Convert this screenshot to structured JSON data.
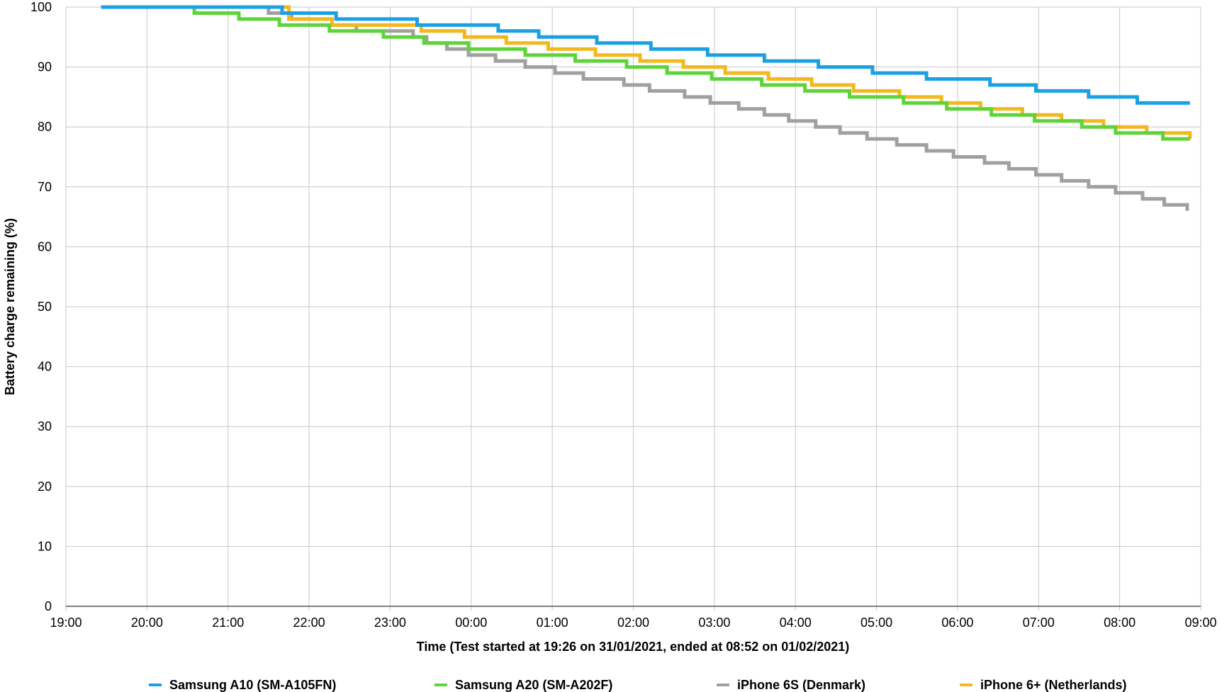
{
  "chart_data": {
    "type": "line",
    "title": "",
    "xlabel": "Time (Test started at 19:26 on 31/01/2021, ended at 08:52 on 01/02/2021)",
    "ylabel": "Battery charge remaining (%)",
    "x_ticks": [
      "19:00",
      "20:00",
      "21:00",
      "22:00",
      "23:00",
      "00:00",
      "01:00",
      "02:00",
      "03:00",
      "04:00",
      "05:00",
      "06:00",
      "07:00",
      "08:00",
      "09:00"
    ],
    "y_ticks": [
      0,
      10,
      20,
      30,
      40,
      50,
      60,
      70,
      80,
      90,
      100
    ],
    "ylim": [
      0,
      100
    ],
    "xlim_hours_from_19_00": [
      0,
      14
    ],
    "grid": true,
    "legend_position": "bottom",
    "step_lines": true,
    "series": [
      {
        "name": "Samsung A10 (SM-A105FN)",
        "color": "#1ba1e2",
        "points": [
          [
            "19:26",
            100
          ],
          [
            "21:40",
            100
          ],
          [
            "21:40",
            99
          ],
          [
            "22:20",
            99
          ],
          [
            "22:20",
            98
          ],
          [
            "23:20",
            98
          ],
          [
            "23:20",
            97
          ],
          [
            "00:20",
            97
          ],
          [
            "00:20",
            96
          ],
          [
            "00:50",
            96
          ],
          [
            "00:50",
            95
          ],
          [
            "01:33",
            95
          ],
          [
            "01:33",
            94
          ],
          [
            "02:13",
            94
          ],
          [
            "02:13",
            93
          ],
          [
            "02:55",
            93
          ],
          [
            "02:55",
            92
          ],
          [
            "03:37",
            92
          ],
          [
            "03:37",
            91
          ],
          [
            "04:17",
            91
          ],
          [
            "04:17",
            90
          ],
          [
            "04:57",
            90
          ],
          [
            "04:57",
            89
          ],
          [
            "05:37",
            89
          ],
          [
            "05:37",
            88
          ],
          [
            "06:24",
            88
          ],
          [
            "06:24",
            87
          ],
          [
            "06:58",
            87
          ],
          [
            "06:58",
            86
          ],
          [
            "07:37",
            86
          ],
          [
            "07:37",
            85
          ],
          [
            "08:13",
            85
          ],
          [
            "08:13",
            84
          ],
          [
            "08:52",
            84
          ]
        ]
      },
      {
        "name": "Samsung A20 (SM-A202F)",
        "color": "#5fd43a",
        "points": [
          [
            "19:26",
            100
          ],
          [
            "20:35",
            100
          ],
          [
            "20:35",
            99
          ],
          [
            "21:08",
            99
          ],
          [
            "21:08",
            98
          ],
          [
            "21:38",
            98
          ],
          [
            "21:38",
            97
          ],
          [
            "22:15",
            97
          ],
          [
            "22:15",
            96
          ],
          [
            "22:55",
            96
          ],
          [
            "22:55",
            95
          ],
          [
            "23:25",
            95
          ],
          [
            "23:25",
            94
          ],
          [
            "23:58",
            94
          ],
          [
            "23:58",
            93
          ],
          [
            "00:40",
            93
          ],
          [
            "00:40",
            92
          ],
          [
            "01:17",
            92
          ],
          [
            "01:17",
            91
          ],
          [
            "01:55",
            91
          ],
          [
            "01:55",
            90
          ],
          [
            "02:25",
            90
          ],
          [
            "02:25",
            89
          ],
          [
            "02:58",
            89
          ],
          [
            "02:58",
            88
          ],
          [
            "03:35",
            88
          ],
          [
            "03:35",
            87
          ],
          [
            "04:07",
            87
          ],
          [
            "04:07",
            86
          ],
          [
            "04:40",
            86
          ],
          [
            "04:40",
            85
          ],
          [
            "05:20",
            85
          ],
          [
            "05:20",
            84
          ],
          [
            "05:52",
            84
          ],
          [
            "05:52",
            83
          ],
          [
            "06:25",
            83
          ],
          [
            "06:25",
            82
          ],
          [
            "06:57",
            82
          ],
          [
            "06:57",
            81
          ],
          [
            "07:32",
            81
          ],
          [
            "07:32",
            80
          ],
          [
            "07:57",
            80
          ],
          [
            "07:57",
            79
          ],
          [
            "08:32",
            79
          ],
          [
            "08:32",
            78
          ],
          [
            "08:52",
            78
          ]
        ]
      },
      {
        "name": "iPhone 6S (Denmark)",
        "color": "#a0a0a0",
        "points": [
          [
            "19:26",
            100
          ],
          [
            "21:30",
            100
          ],
          [
            "21:30",
            99
          ],
          [
            "21:47",
            99
          ],
          [
            "21:47",
            98
          ],
          [
            "22:17",
            98
          ],
          [
            "22:17",
            97
          ],
          [
            "22:35",
            97
          ],
          [
            "22:35",
            96
          ],
          [
            "23:17",
            96
          ],
          [
            "23:17",
            95
          ],
          [
            "23:27",
            95
          ],
          [
            "23:27",
            94
          ],
          [
            "23:42",
            94
          ],
          [
            "23:42",
            93
          ],
          [
            "23:58",
            93
          ],
          [
            "23:58",
            92
          ],
          [
            "00:18",
            92
          ],
          [
            "00:18",
            91
          ],
          [
            "00:40",
            91
          ],
          [
            "00:40",
            90
          ],
          [
            "01:02",
            90
          ],
          [
            "01:02",
            89
          ],
          [
            "01:23",
            89
          ],
          [
            "01:23",
            88
          ],
          [
            "01:53",
            88
          ],
          [
            "01:53",
            87
          ],
          [
            "02:12",
            87
          ],
          [
            "02:12",
            86
          ],
          [
            "02:38",
            86
          ],
          [
            "02:38",
            85
          ],
          [
            "02:57",
            85
          ],
          [
            "02:57",
            84
          ],
          [
            "03:18",
            84
          ],
          [
            "03:18",
            83
          ],
          [
            "03:37",
            83
          ],
          [
            "03:37",
            82
          ],
          [
            "03:55",
            82
          ],
          [
            "03:55",
            81
          ],
          [
            "04:15",
            81
          ],
          [
            "04:15",
            80
          ],
          [
            "04:33",
            80
          ],
          [
            "04:33",
            79
          ],
          [
            "04:53",
            79
          ],
          [
            "04:53",
            78
          ],
          [
            "05:15",
            78
          ],
          [
            "05:15",
            77
          ],
          [
            "05:37",
            77
          ],
          [
            "05:37",
            76
          ],
          [
            "05:57",
            76
          ],
          [
            "05:57",
            75
          ],
          [
            "06:20",
            75
          ],
          [
            "06:20",
            74
          ],
          [
            "06:38",
            74
          ],
          [
            "06:38",
            73
          ],
          [
            "06:58",
            73
          ],
          [
            "06:58",
            72
          ],
          [
            "07:17",
            72
          ],
          [
            "07:17",
            71
          ],
          [
            "07:37",
            71
          ],
          [
            "07:37",
            70
          ],
          [
            "07:57",
            70
          ],
          [
            "07:57",
            69
          ],
          [
            "08:17",
            69
          ],
          [
            "08:17",
            68
          ],
          [
            "08:33",
            68
          ],
          [
            "08:33",
            67
          ],
          [
            "08:50",
            67
          ],
          [
            "08:50",
            66
          ]
        ]
      },
      {
        "name": "iPhone 6+ (Netherlands)",
        "color": "#f2b81c",
        "points": [
          [
            "19:26",
            100
          ],
          [
            "21:45",
            100
          ],
          [
            "21:45",
            98
          ],
          [
            "22:17",
            98
          ],
          [
            "22:17",
            97
          ],
          [
            "22:50",
            97
          ],
          [
            "22:50",
            97
          ],
          [
            "23:23",
            97
          ],
          [
            "23:23",
            96
          ],
          [
            "23:55",
            96
          ],
          [
            "23:55",
            95
          ],
          [
            "00:26",
            95
          ],
          [
            "00:26",
            94
          ],
          [
            "00:57",
            94
          ],
          [
            "00:57",
            93
          ],
          [
            "01:32",
            93
          ],
          [
            "01:32",
            92
          ],
          [
            "02:05",
            92
          ],
          [
            "02:05",
            91
          ],
          [
            "02:37",
            91
          ],
          [
            "02:37",
            90
          ],
          [
            "03:08",
            90
          ],
          [
            "03:08",
            89
          ],
          [
            "03:40",
            89
          ],
          [
            "03:40",
            88
          ],
          [
            "04:12",
            88
          ],
          [
            "04:12",
            87
          ],
          [
            "04:43",
            87
          ],
          [
            "04:43",
            86
          ],
          [
            "05:17",
            86
          ],
          [
            "05:17",
            85
          ],
          [
            "05:48",
            85
          ],
          [
            "05:48",
            84
          ],
          [
            "06:17",
            84
          ],
          [
            "06:17",
            83
          ],
          [
            "06:48",
            83
          ],
          [
            "06:48",
            82
          ],
          [
            "07:17",
            82
          ],
          [
            "07:17",
            81
          ],
          [
            "07:48",
            81
          ],
          [
            "07:48",
            80
          ],
          [
            "08:20",
            80
          ],
          [
            "08:20",
            79
          ],
          [
            "08:52",
            79
          ],
          [
            "08:52",
            78
          ]
        ]
      }
    ]
  }
}
